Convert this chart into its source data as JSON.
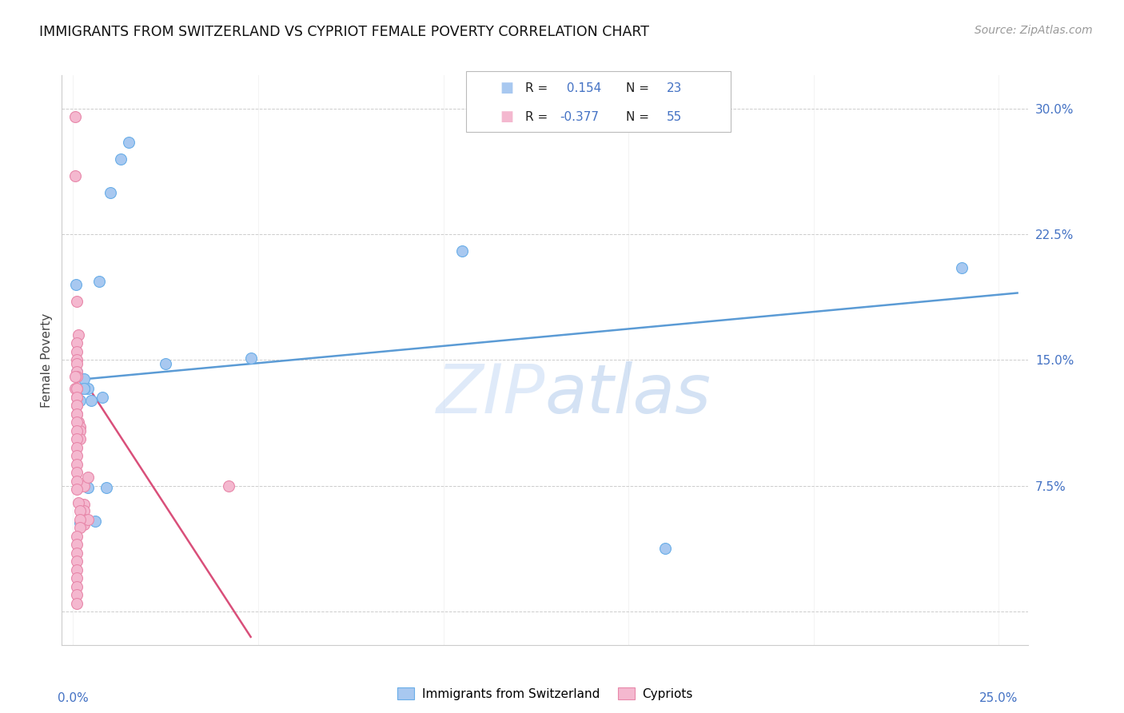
{
  "title": "IMMIGRANTS FROM SWITZERLAND VS CYPRIOT FEMALE POVERTY CORRELATION CHART",
  "source": "Source: ZipAtlas.com",
  "ylabel": "Female Poverty",
  "yticks": [
    0.0,
    0.075,
    0.15,
    0.225,
    0.3
  ],
  "ytick_labels": [
    "",
    "7.5%",
    "15.0%",
    "22.5%",
    "30.0%"
  ],
  "xlim": [
    -0.003,
    0.258
  ],
  "ylim": [
    -0.02,
    0.32
  ],
  "watermark": "ZIPatlas",
  "legend_label_blue": "Immigrants from Switzerland",
  "legend_label_pink": "Cypriots",
  "blue_color": "#a8c8f0",
  "pink_color": "#f4b8cf",
  "blue_edge_color": "#6aaee8",
  "pink_edge_color": "#e888aa",
  "blue_line_color": "#5b9bd5",
  "pink_line_color": "#d94f7a",
  "text_blue": "#4472c4",
  "blue_scatter_x": [
    0.0008,
    0.013,
    0.01,
    0.015,
    0.007,
    0.001,
    0.004,
    0.003,
    0.002,
    0.005,
    0.008,
    0.009,
    0.003,
    0.004,
    0.006,
    0.002,
    0.003,
    0.24,
    0.16,
    0.003,
    0.025,
    0.048,
    0.105
  ],
  "blue_scatter_y": [
    0.195,
    0.27,
    0.25,
    0.28,
    0.197,
    0.143,
    0.133,
    0.133,
    0.126,
    0.126,
    0.128,
    0.074,
    0.139,
    0.074,
    0.054,
    0.053,
    0.133,
    0.205,
    0.038,
    0.133,
    0.148,
    0.151,
    0.215
  ],
  "pink_scatter_x": [
    0.0005,
    0.0005,
    0.001,
    0.0015,
    0.001,
    0.001,
    0.001,
    0.001,
    0.001,
    0.001,
    0.001,
    0.0005,
    0.001,
    0.001,
    0.001,
    0.0015,
    0.002,
    0.002,
    0.002,
    0.002,
    0.003,
    0.003,
    0.003,
    0.003,
    0.003,
    0.004,
    0.004,
    0.0005,
    0.001,
    0.001,
    0.001,
    0.001,
    0.001,
    0.001,
    0.001,
    0.001,
    0.001,
    0.001,
    0.001,
    0.001,
    0.001,
    0.0015,
    0.002,
    0.002,
    0.002,
    0.001,
    0.001,
    0.001,
    0.001,
    0.001,
    0.001,
    0.001,
    0.001,
    0.042,
    0.001
  ],
  "pink_scatter_y": [
    0.295,
    0.26,
    0.185,
    0.165,
    0.16,
    0.155,
    0.15,
    0.148,
    0.143,
    0.14,
    0.133,
    0.133,
    0.128,
    0.123,
    0.118,
    0.113,
    0.11,
    0.108,
    0.103,
    0.075,
    0.075,
    0.064,
    0.06,
    0.055,
    0.052,
    0.08,
    0.055,
    0.14,
    0.133,
    0.128,
    0.123,
    0.118,
    0.113,
    0.108,
    0.103,
    0.098,
    0.093,
    0.088,
    0.083,
    0.078,
    0.073,
    0.065,
    0.06,
    0.055,
    0.05,
    0.045,
    0.04,
    0.035,
    0.03,
    0.025,
    0.02,
    0.015,
    0.01,
    0.075,
    0.005
  ],
  "blue_trend_x": [
    0.0,
    0.255
  ],
  "blue_trend_y": [
    0.138,
    0.19
  ],
  "pink_trend_x": [
    0.0,
    0.048
  ],
  "pink_trend_y": [
    0.148,
    -0.015
  ],
  "marker_size": 100
}
